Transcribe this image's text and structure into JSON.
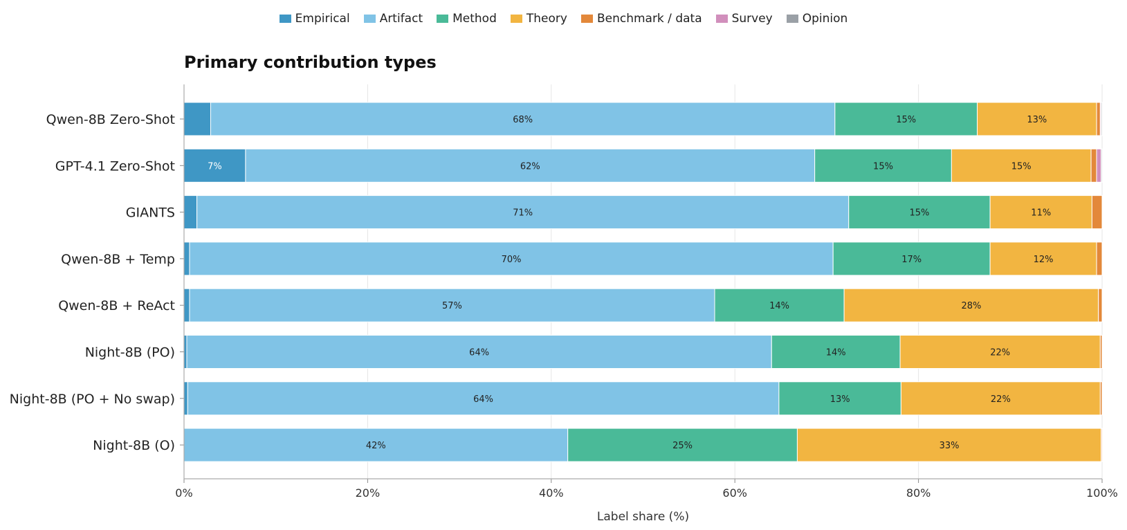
{
  "chart_data": {
    "type": "bar",
    "orientation": "horizontal",
    "stacked": true,
    "title": "Primary contribution types",
    "xlabel": "Label share (%)",
    "ylabel": "",
    "xlim": [
      0,
      100
    ],
    "x_ticks": [
      "0%",
      "20%",
      "40%",
      "60%",
      "80%",
      "100%"
    ],
    "grid": "vertical",
    "legend_position": "top-center",
    "categories": [
      "Qwen-8B Zero-Shot",
      "GPT-4.1 Zero-Shot",
      "GIANTS",
      "Qwen-8B + Temp",
      "Qwen-8B + ReAct",
      "Night-8B (PO)",
      "Night-8B (PO + No swap)",
      "Night-8B (O)"
    ],
    "series": [
      {
        "name": "Empirical",
        "color": "#3f97c5",
        "values": [
          2.9,
          6.7,
          1.4,
          0.6,
          0.6,
          0.3,
          0.4,
          0.0
        ]
      },
      {
        "name": "Artifact",
        "color": "#80c3e6",
        "values": [
          68.0,
          62.0,
          71.0,
          70.1,
          57.2,
          63.7,
          64.4,
          41.8
        ]
      },
      {
        "name": "Method",
        "color": "#4aba98",
        "values": [
          15.5,
          14.9,
          15.4,
          17.1,
          14.1,
          14.0,
          13.3,
          25.0
        ]
      },
      {
        "name": "Theory",
        "color": "#f2b541",
        "values": [
          13.0,
          15.2,
          11.1,
          11.6,
          27.7,
          21.8,
          21.7,
          33.1
        ]
      },
      {
        "name": "Benchmark / data",
        "color": "#e3883a",
        "values": [
          0.4,
          0.6,
          1.1,
          0.6,
          0.4,
          0.4,
          0.2,
          0.1
        ]
      },
      {
        "name": "Survey",
        "color": "#d18fbc",
        "values": [
          0.1,
          0.5,
          0.0,
          0.0,
          0.0,
          0.0,
          0.0,
          0.0
        ]
      },
      {
        "name": "Opinion",
        "color": "#9aa0a6",
        "values": [
          0.1,
          0.1,
          0.0,
          0.0,
          0.0,
          0.0,
          0.0,
          0.0
        ]
      }
    ],
    "data_labels": [
      {
        "category": 0,
        "series": "Artifact",
        "text": "68%"
      },
      {
        "category": 0,
        "series": "Method",
        "text": "15%"
      },
      {
        "category": 0,
        "series": "Theory",
        "text": "13%"
      },
      {
        "category": 1,
        "series": "Empirical",
        "text": "7%"
      },
      {
        "category": 1,
        "series": "Artifact",
        "text": "62%"
      },
      {
        "category": 1,
        "series": "Method",
        "text": "15%"
      },
      {
        "category": 1,
        "series": "Theory",
        "text": "15%"
      },
      {
        "category": 2,
        "series": "Artifact",
        "text": "71%"
      },
      {
        "category": 2,
        "series": "Method",
        "text": "15%"
      },
      {
        "category": 2,
        "series": "Theory",
        "text": "11%"
      },
      {
        "category": 3,
        "series": "Artifact",
        "text": "70%"
      },
      {
        "category": 3,
        "series": "Method",
        "text": "17%"
      },
      {
        "category": 3,
        "series": "Theory",
        "text": "12%"
      },
      {
        "category": 4,
        "series": "Artifact",
        "text": "57%"
      },
      {
        "category": 4,
        "series": "Method",
        "text": "14%"
      },
      {
        "category": 4,
        "series": "Theory",
        "text": "28%"
      },
      {
        "category": 5,
        "series": "Artifact",
        "text": "64%"
      },
      {
        "category": 5,
        "series": "Method",
        "text": "14%"
      },
      {
        "category": 5,
        "series": "Theory",
        "text": "22%"
      },
      {
        "category": 6,
        "series": "Artifact",
        "text": "64%"
      },
      {
        "category": 6,
        "series": "Method",
        "text": "13%"
      },
      {
        "category": 6,
        "series": "Theory",
        "text": "22%"
      },
      {
        "category": 7,
        "series": "Artifact",
        "text": "42%"
      },
      {
        "category": 7,
        "series": "Method",
        "text": "25%"
      },
      {
        "category": 7,
        "series": "Theory",
        "text": "33%"
      }
    ]
  }
}
